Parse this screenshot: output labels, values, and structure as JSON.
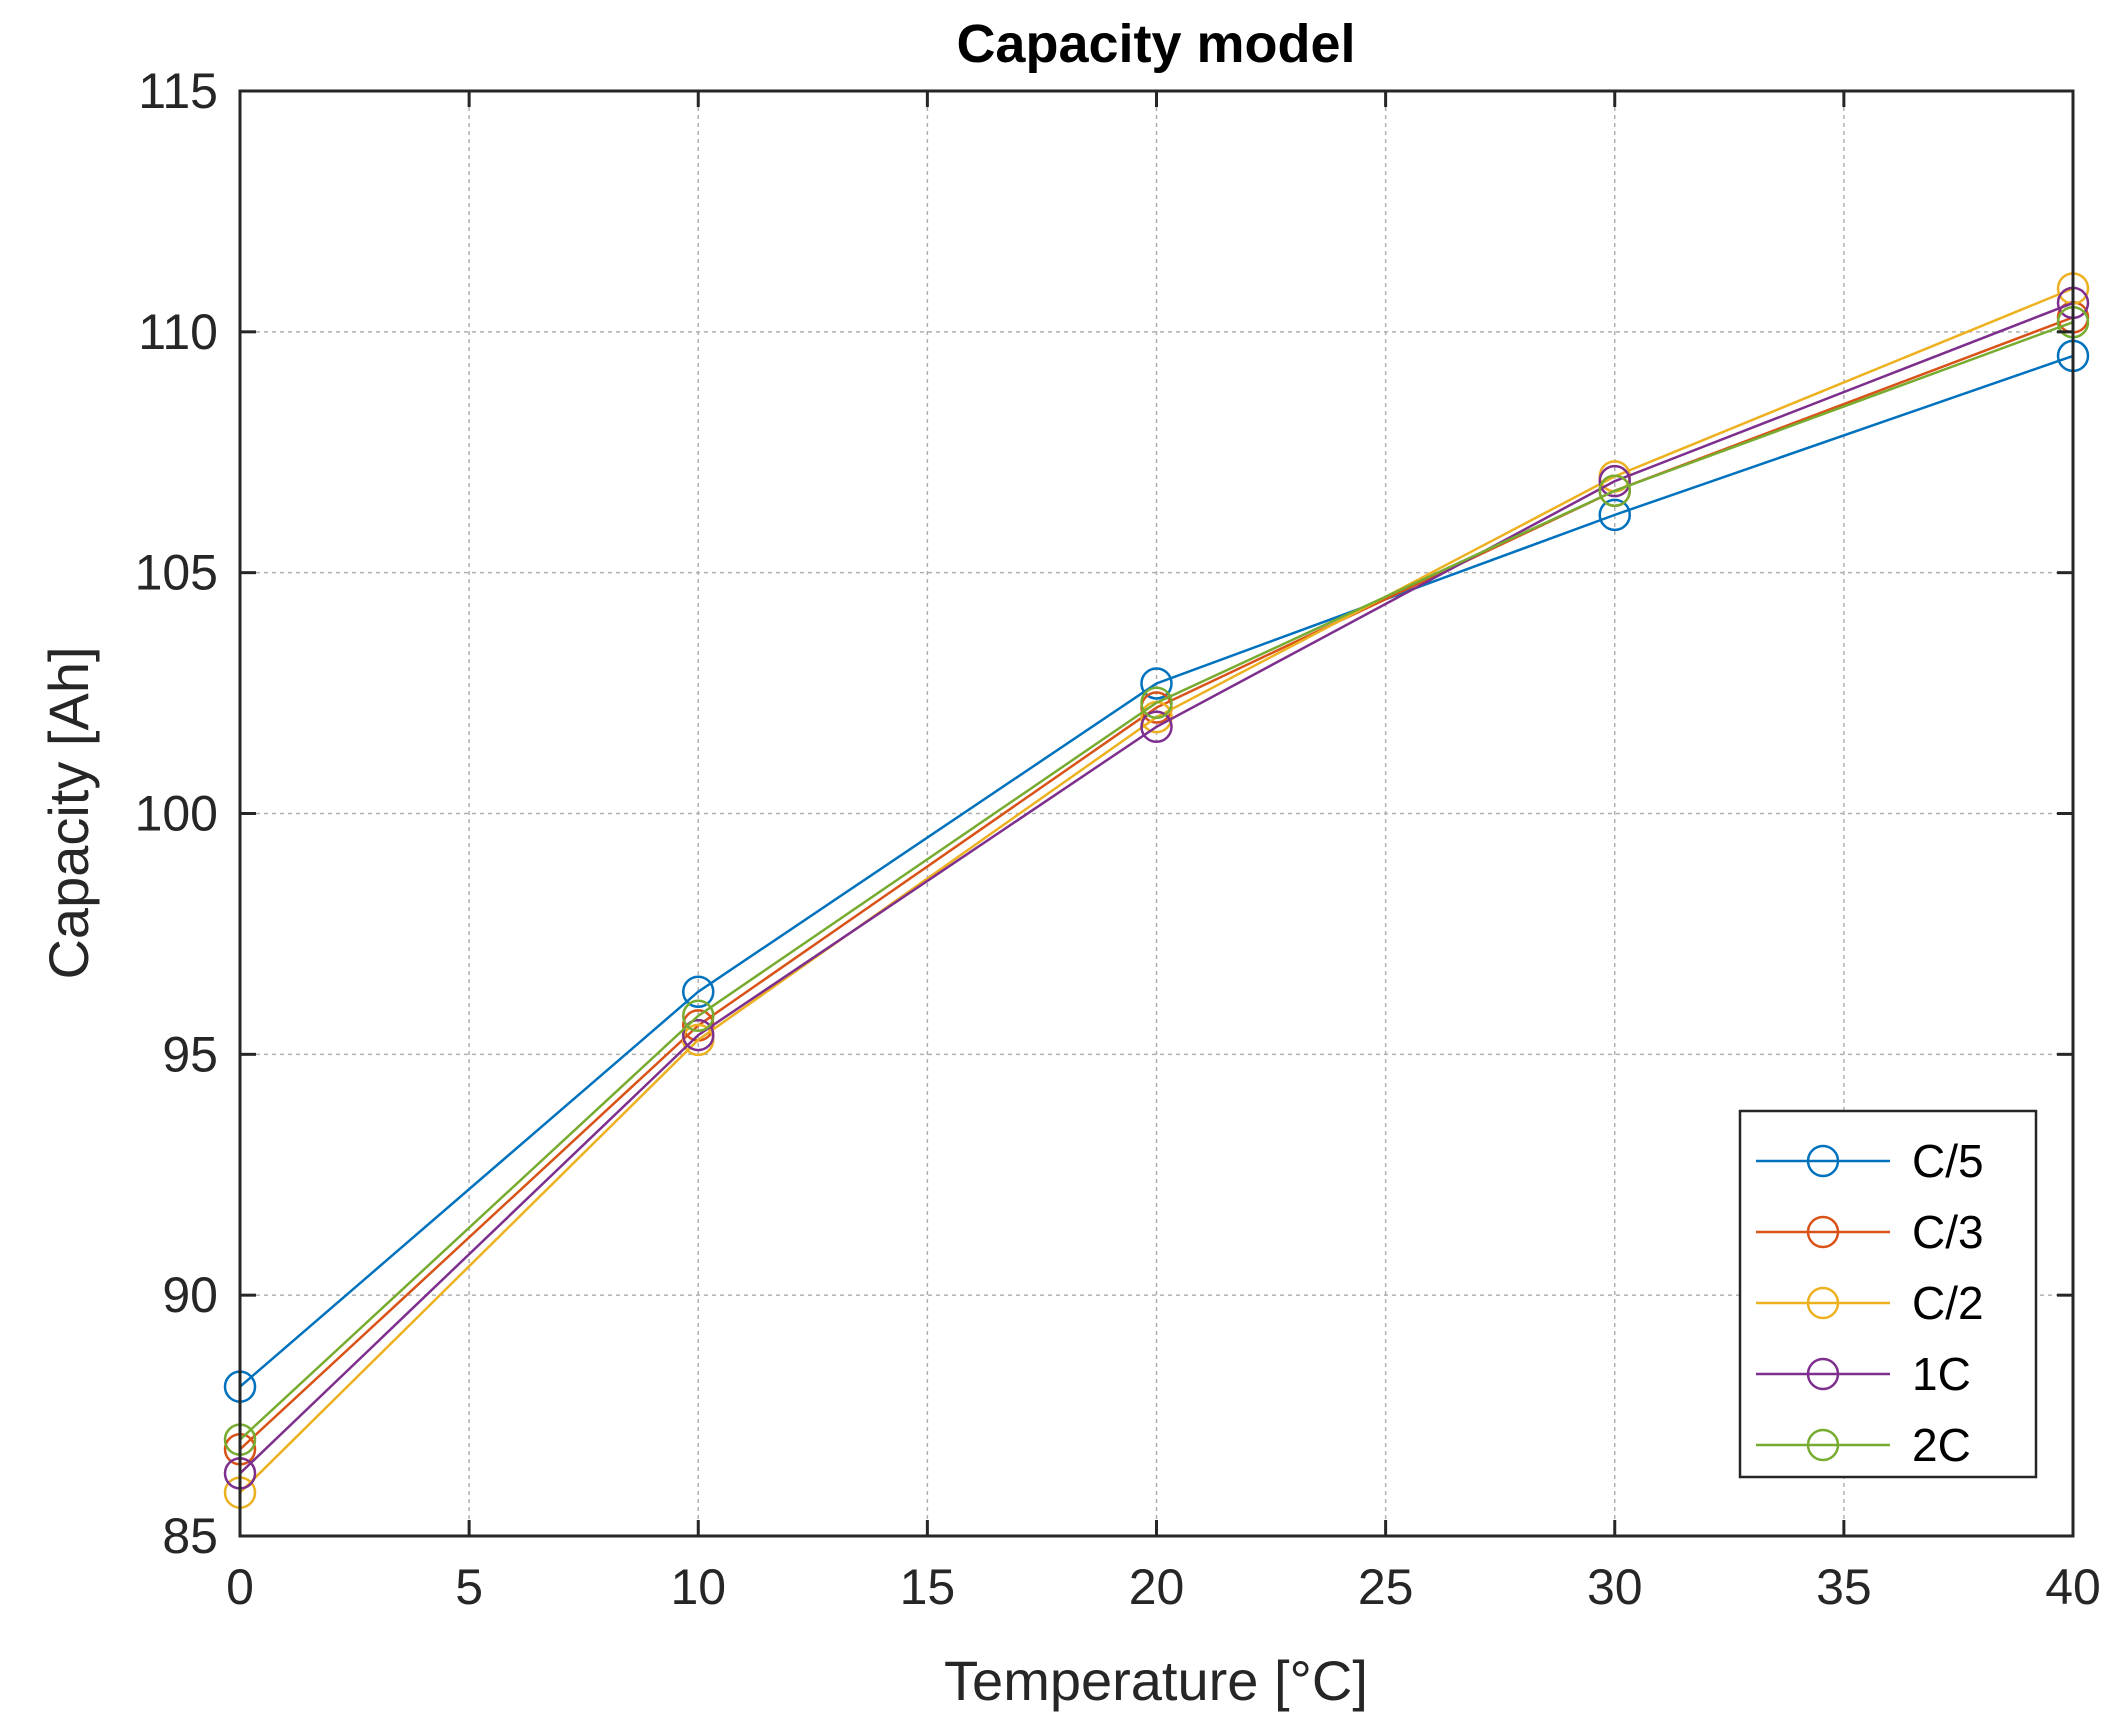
{
  "chart_data": {
    "type": "line",
    "title": "Capacity model",
    "xlabel": "Temperature [°C]",
    "ylabel": "Capacity [Ah]",
    "xlim": [
      0,
      40
    ],
    "ylim": [
      85,
      115
    ],
    "xticks": [
      0,
      5,
      10,
      15,
      20,
      25,
      30,
      35,
      40
    ],
    "yticks": [
      85,
      90,
      95,
      100,
      105,
      110,
      115
    ],
    "grid": true,
    "legend_position": "bottom-right",
    "marker": "circle",
    "x": [
      0,
      10,
      20,
      30,
      40
    ],
    "series": [
      {
        "name": "C/5",
        "color": "#0072BD",
        "values": [
          88.1,
          96.3,
          102.7,
          106.2,
          109.5
        ]
      },
      {
        "name": "C/3",
        "color": "#D95319",
        "values": [
          86.8,
          95.6,
          102.2,
          106.7,
          110.3
        ]
      },
      {
        "name": "C/2",
        "color": "#EDB120",
        "values": [
          85.9,
          95.3,
          102.0,
          107.0,
          110.9
        ]
      },
      {
        "name": "1C",
        "color": "#7E2F8E",
        "values": [
          86.3,
          95.4,
          101.8,
          106.9,
          110.6
        ]
      },
      {
        "name": "2C",
        "color": "#77AC30",
        "values": [
          87.0,
          95.8,
          102.3,
          106.7,
          110.2
        ]
      }
    ]
  }
}
